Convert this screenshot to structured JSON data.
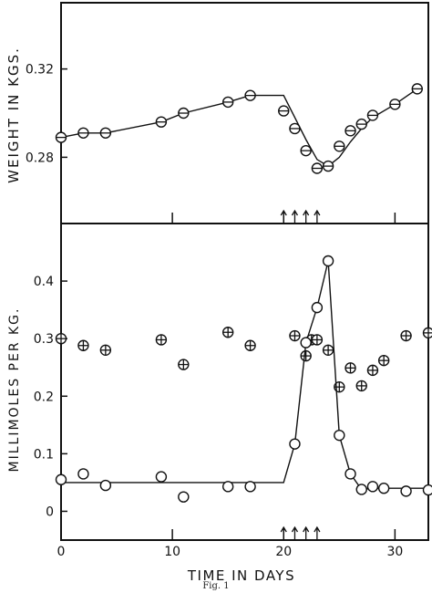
{
  "caption": "Fig. 1",
  "chart_data": [
    {
      "type": "line",
      "panel": "top",
      "ylabel": "WEIGHT IN KGS.",
      "xlim": [
        0,
        33
      ],
      "ylim": [
        0.25,
        0.35
      ],
      "x_ticks": [
        0,
        10,
        20,
        30
      ],
      "y_ticks": [
        0.28,
        0.32
      ],
      "y_tick_labels": [
        "0.28",
        "0.32"
      ],
      "dose_arrows_x": [
        20,
        21,
        22,
        23
      ],
      "series": [
        {
          "marker": "circle-minus",
          "points": [
            [
              0,
              0.289
            ],
            [
              2,
              0.291
            ],
            [
              4,
              0.291
            ],
            [
              9,
              0.296
            ],
            [
              11,
              0.3
            ],
            [
              15,
              0.305
            ],
            [
              17,
              0.308
            ],
            [
              20,
              0.301
            ],
            [
              21,
              0.293
            ],
            [
              22,
              0.283
            ],
            [
              23,
              0.275
            ],
            [
              24,
              0.276
            ],
            [
              25,
              0.285
            ],
            [
              26,
              0.292
            ],
            [
              27,
              0.295
            ],
            [
              28,
              0.299
            ],
            [
              30,
              0.304
            ],
            [
              32,
              0.311
            ]
          ],
          "line": [
            [
              0,
              0.289
            ],
            [
              2,
              0.291
            ],
            [
              4,
              0.291
            ],
            [
              9,
              0.296
            ],
            [
              11,
              0.3
            ],
            [
              15,
              0.305
            ],
            [
              17,
              0.308
            ],
            [
              20,
              0.308
            ],
            [
              21,
              0.298
            ],
            [
              22,
              0.288
            ],
            [
              23,
              0.279
            ],
            [
              24,
              0.276
            ],
            [
              25,
              0.28
            ],
            [
              26,
              0.287
            ],
            [
              27,
              0.293
            ],
            [
              28,
              0.298
            ],
            [
              30,
              0.304
            ],
            [
              32,
              0.311
            ]
          ]
        }
      ]
    },
    {
      "type": "line",
      "panel": "bottom",
      "xlabel": "TIME IN DAYS",
      "ylabel": "MILLIMOLES PER KG.",
      "xlim": [
        0,
        33
      ],
      "ylim": [
        -0.05,
        0.5
      ],
      "x_ticks": [
        0,
        10,
        20,
        30
      ],
      "x_tick_labels": [
        "0",
        "10",
        "20",
        "30"
      ],
      "y_ticks": [
        0,
        0.1,
        0.2,
        0.3,
        0.4
      ],
      "y_tick_labels": [
        "0",
        "0.1",
        "0.2",
        "0.3",
        "0.4"
      ],
      "dose_arrows_x": [
        20,
        21,
        22,
        23
      ],
      "series": [
        {
          "marker": "circle-plus",
          "points": [
            [
              0,
              0.3
            ],
            [
              2,
              0.288
            ],
            [
              4,
              0.28
            ],
            [
              9,
              0.298
            ],
            [
              11,
              0.255
            ],
            [
              15,
              0.311
            ],
            [
              17,
              0.288
            ],
            [
              21,
              0.305
            ],
            [
              22,
              0.27
            ],
            [
              22.5,
              0.298
            ],
            [
              23,
              0.298
            ],
            [
              24,
              0.28
            ],
            [
              25,
              0.216
            ],
            [
              26,
              0.249
            ],
            [
              27,
              0.218
            ],
            [
              28,
              0.245
            ],
            [
              29,
              0.262
            ],
            [
              31,
              0.305
            ],
            [
              33,
              0.31
            ]
          ]
        },
        {
          "marker": "circle",
          "points": [
            [
              0,
              0.055
            ],
            [
              2,
              0.065
            ],
            [
              4,
              0.045
            ],
            [
              9,
              0.06
            ],
            [
              11,
              0.025
            ],
            [
              15,
              0.043
            ],
            [
              17,
              0.043
            ],
            [
              21,
              0.117
            ],
            [
              22,
              0.293
            ],
            [
              23,
              0.354
            ],
            [
              24,
              0.435
            ],
            [
              25,
              0.132
            ],
            [
              26,
              0.065
            ],
            [
              27,
              0.038
            ],
            [
              28,
              0.043
            ],
            [
              29,
              0.04
            ],
            [
              31,
              0.035
            ],
            [
              33,
              0.037
            ]
          ],
          "line": [
            [
              0,
              0.05
            ],
            [
              20,
              0.05
            ],
            [
              21,
              0.117
            ],
            [
              22,
              0.293
            ],
            [
              23,
              0.354
            ],
            [
              24,
              0.435
            ],
            [
              25,
              0.132
            ],
            [
              26,
              0.065
            ],
            [
              27,
              0.038
            ],
            [
              28,
              0.04
            ],
            [
              29,
              0.04
            ],
            [
              33,
              0.04
            ]
          ]
        }
      ]
    }
  ]
}
